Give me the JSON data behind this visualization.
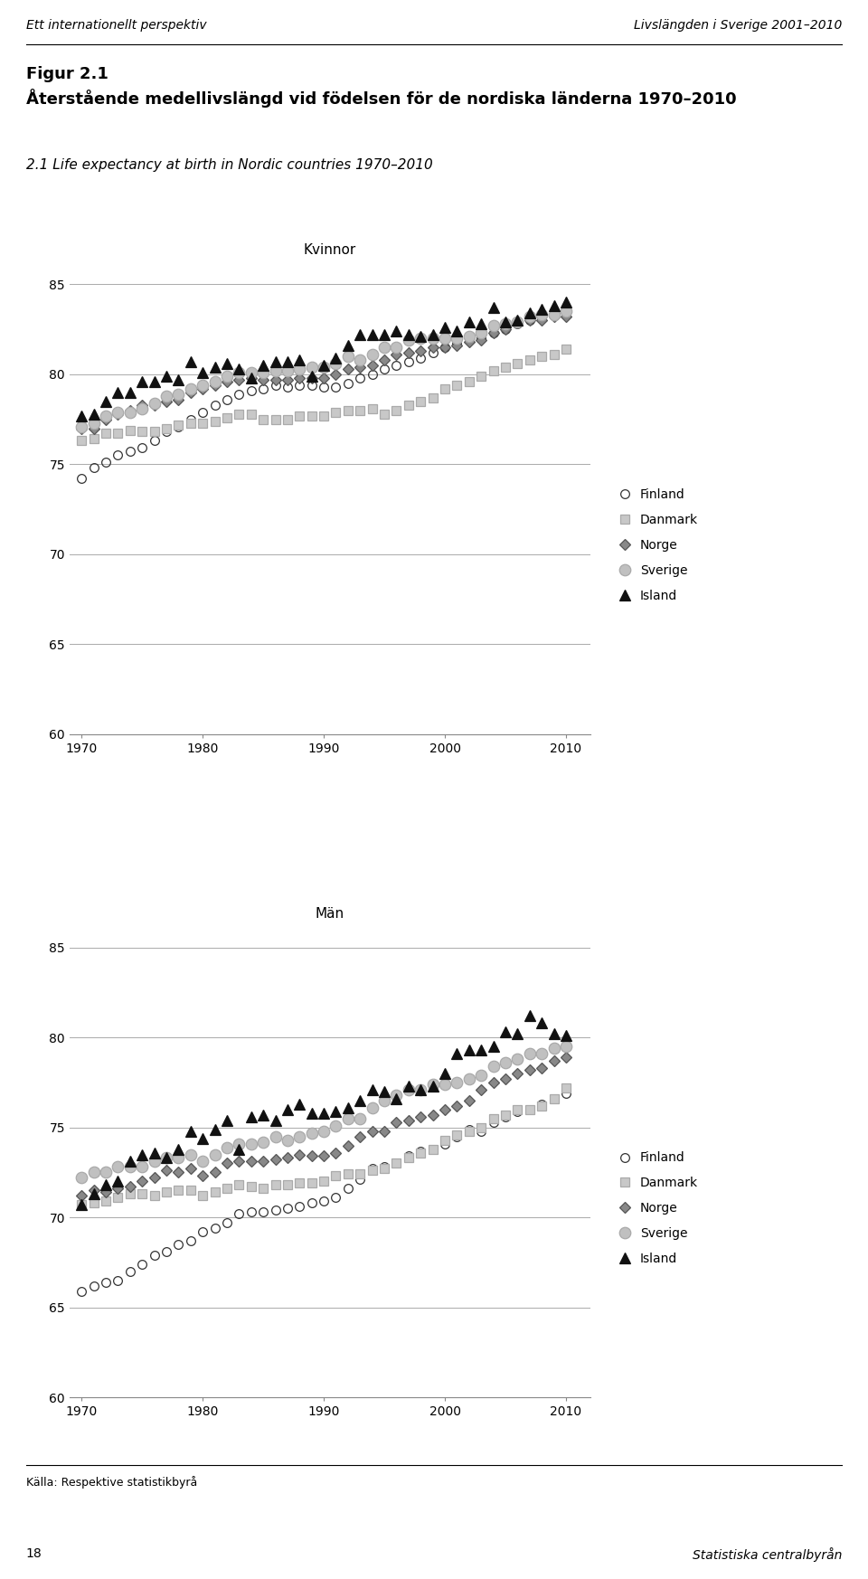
{
  "header_left": "Ett internationellt perspektiv",
  "header_right": "Livslängden i Sverige 2001–2010",
  "figure_title": "Figur 2.1",
  "figure_subtitle": "Återstående medellivslängd vid födelsen för de nordiska länderna 1970–2010",
  "chart_title": "2.1 Life expectancy at birth in Nordic countries 1970–2010",
  "section_kvinnor": "Kvinnor",
  "section_man": "Män",
  "footer": "Källa: Respektive statistikbyrå",
  "page_left": "18",
  "page_right": "Statistiska centralbyrån",
  "years": [
    1970,
    1971,
    1972,
    1973,
    1974,
    1975,
    1976,
    1977,
    1978,
    1979,
    1980,
    1981,
    1982,
    1983,
    1984,
    1985,
    1986,
    1987,
    1988,
    1989,
    1990,
    1991,
    1992,
    1993,
    1994,
    1995,
    1996,
    1997,
    1998,
    1999,
    2000,
    2001,
    2002,
    2003,
    2004,
    2005,
    2006,
    2007,
    2008,
    2009,
    2010
  ],
  "kvinnor": {
    "Finland": [
      74.2,
      74.8,
      75.1,
      75.5,
      75.7,
      75.9,
      76.3,
      76.8,
      77.1,
      77.5,
      77.9,
      78.3,
      78.6,
      78.9,
      79.1,
      79.2,
      79.4,
      79.3,
      79.4,
      79.4,
      79.3,
      79.3,
      79.5,
      79.8,
      80.0,
      80.3,
      80.5,
      80.7,
      80.9,
      81.2,
      81.5,
      81.7,
      81.9,
      82.0,
      82.3,
      82.5,
      82.8,
      83.0,
      83.1,
      83.3,
      83.5
    ],
    "Danmark": [
      76.3,
      76.4,
      76.7,
      76.7,
      76.9,
      76.8,
      76.8,
      77.0,
      77.2,
      77.3,
      77.3,
      77.4,
      77.6,
      77.8,
      77.8,
      77.5,
      77.5,
      77.5,
      77.7,
      77.7,
      77.7,
      77.9,
      78.0,
      78.0,
      78.1,
      77.8,
      78.0,
      78.3,
      78.5,
      78.7,
      79.2,
      79.4,
      79.6,
      79.9,
      80.2,
      80.4,
      80.6,
      80.8,
      81.0,
      81.1,
      81.4
    ],
    "Norge": [
      77.0,
      77.0,
      77.5,
      77.8,
      78.0,
      78.3,
      78.3,
      78.5,
      78.6,
      79.0,
      79.2,
      79.4,
      79.6,
      79.7,
      79.8,
      79.7,
      79.7,
      79.7,
      79.8,
      79.8,
      79.8,
      80.0,
      80.3,
      80.4,
      80.5,
      80.8,
      81.1,
      81.2,
      81.3,
      81.5,
      81.5,
      81.6,
      81.8,
      81.9,
      82.3,
      82.5,
      82.9,
      83.0,
      83.0,
      83.2,
      83.2
    ],
    "Sverige": [
      77.1,
      77.3,
      77.7,
      77.9,
      77.9,
      78.1,
      78.4,
      78.8,
      78.9,
      79.2,
      79.4,
      79.6,
      79.9,
      80.1,
      80.1,
      80.1,
      80.2,
      80.2,
      80.3,
      80.4,
      80.4,
      80.6,
      81.0,
      80.8,
      81.1,
      81.5,
      81.5,
      81.9,
      82.0,
      82.0,
      82.0,
      82.0,
      82.1,
      82.3,
      82.7,
      82.8,
      82.9,
      83.2,
      83.3,
      83.3,
      83.5
    ],
    "Island": [
      77.7,
      77.8,
      78.5,
      79.0,
      79.0,
      79.6,
      79.6,
      79.9,
      79.7,
      80.7,
      80.1,
      80.4,
      80.6,
      80.3,
      79.8,
      80.5,
      80.7,
      80.7,
      80.8,
      79.9,
      80.5,
      80.9,
      81.6,
      82.2,
      82.2,
      82.2,
      82.4,
      82.2,
      82.1,
      82.2,
      82.6,
      82.4,
      82.9,
      82.8,
      83.7,
      82.9,
      83.0,
      83.4,
      83.6,
      83.8,
      84.0
    ]
  },
  "man": {
    "Finland": [
      65.9,
      66.2,
      66.4,
      66.5,
      67.0,
      67.4,
      67.9,
      68.1,
      68.5,
      68.7,
      69.2,
      69.4,
      69.7,
      70.2,
      70.3,
      70.3,
      70.4,
      70.5,
      70.6,
      70.8,
      70.9,
      71.1,
      71.6,
      72.1,
      72.7,
      72.8,
      73.0,
      73.4,
      73.7,
      73.8,
      74.1,
      74.5,
      74.9,
      74.8,
      75.3,
      75.6,
      75.9,
      76.0,
      76.3,
      76.6,
      76.9
    ],
    "Danmark": [
      70.7,
      70.8,
      70.9,
      71.1,
      71.3,
      71.3,
      71.2,
      71.4,
      71.5,
      71.5,
      71.2,
      71.4,
      71.6,
      71.8,
      71.7,
      71.6,
      71.8,
      71.8,
      71.9,
      71.9,
      72.0,
      72.3,
      72.4,
      72.4,
      72.6,
      72.7,
      73.0,
      73.3,
      73.6,
      73.8,
      74.3,
      74.6,
      74.8,
      75.0,
      75.5,
      75.7,
      76.0,
      76.0,
      76.2,
      76.6,
      77.2
    ],
    "Norge": [
      71.2,
      71.5,
      71.4,
      71.6,
      71.7,
      72.0,
      72.2,
      72.6,
      72.5,
      72.7,
      72.3,
      72.5,
      73.0,
      73.1,
      73.1,
      73.1,
      73.2,
      73.3,
      73.5,
      73.4,
      73.4,
      73.6,
      74.0,
      74.5,
      74.8,
      74.8,
      75.3,
      75.4,
      75.6,
      75.7,
      76.0,
      76.2,
      76.5,
      77.1,
      77.5,
      77.7,
      78.0,
      78.2,
      78.3,
      78.7,
      78.9
    ],
    "Sverige": [
      72.2,
      72.5,
      72.5,
      72.8,
      72.8,
      72.8,
      73.1,
      73.3,
      73.3,
      73.5,
      73.1,
      73.5,
      73.9,
      74.1,
      74.1,
      74.2,
      74.5,
      74.3,
      74.5,
      74.7,
      74.8,
      75.1,
      75.5,
      75.5,
      76.1,
      76.5,
      76.8,
      77.1,
      77.1,
      77.4,
      77.4,
      77.5,
      77.7,
      77.9,
      78.4,
      78.6,
      78.8,
      79.1,
      79.1,
      79.4,
      79.5
    ],
    "Island": [
      70.7,
      71.3,
      71.8,
      72.0,
      73.1,
      73.5,
      73.6,
      73.3,
      73.8,
      74.8,
      74.4,
      74.9,
      75.4,
      73.8,
      75.6,
      75.7,
      75.4,
      76.0,
      76.3,
      75.8,
      75.8,
      75.9,
      76.1,
      76.5,
      77.1,
      77.0,
      76.6,
      77.3,
      77.1,
      77.3,
      78.0,
      79.1,
      79.3,
      79.3,
      79.5,
      80.3,
      80.2,
      81.2,
      80.8,
      80.2,
      80.1
    ]
  },
  "legend_order": [
    "Finland",
    "Danmark",
    "Norge",
    "Sverige",
    "Island"
  ],
  "ylim": [
    60,
    85
  ],
  "yticks": [
    60,
    65,
    70,
    75,
    80,
    85
  ],
  "xlim": [
    1969,
    2012
  ],
  "xticks": [
    1970,
    1980,
    1990,
    2000,
    2010
  ],
  "bg_color": "#ffffff",
  "grid_color": "#aaaaaa",
  "marker_styles": {
    "Finland": "o",
    "Danmark": "s",
    "Norge": "D",
    "Sverige": "o",
    "Island": "^"
  },
  "marker_facecolors": {
    "Finland": "none",
    "Danmark": "#c8c8c8",
    "Norge": "#888888",
    "Sverige": "#c0c0c0",
    "Island": "#111111"
  },
  "marker_edgecolors": {
    "Finland": "#333333",
    "Danmark": "#aaaaaa",
    "Norge": "#555555",
    "Sverige": "#aaaaaa",
    "Island": "#111111"
  },
  "marker_sizes": {
    "Finland": 7,
    "Danmark": 7,
    "Norge": 6,
    "Sverige": 9,
    "Island": 8
  }
}
